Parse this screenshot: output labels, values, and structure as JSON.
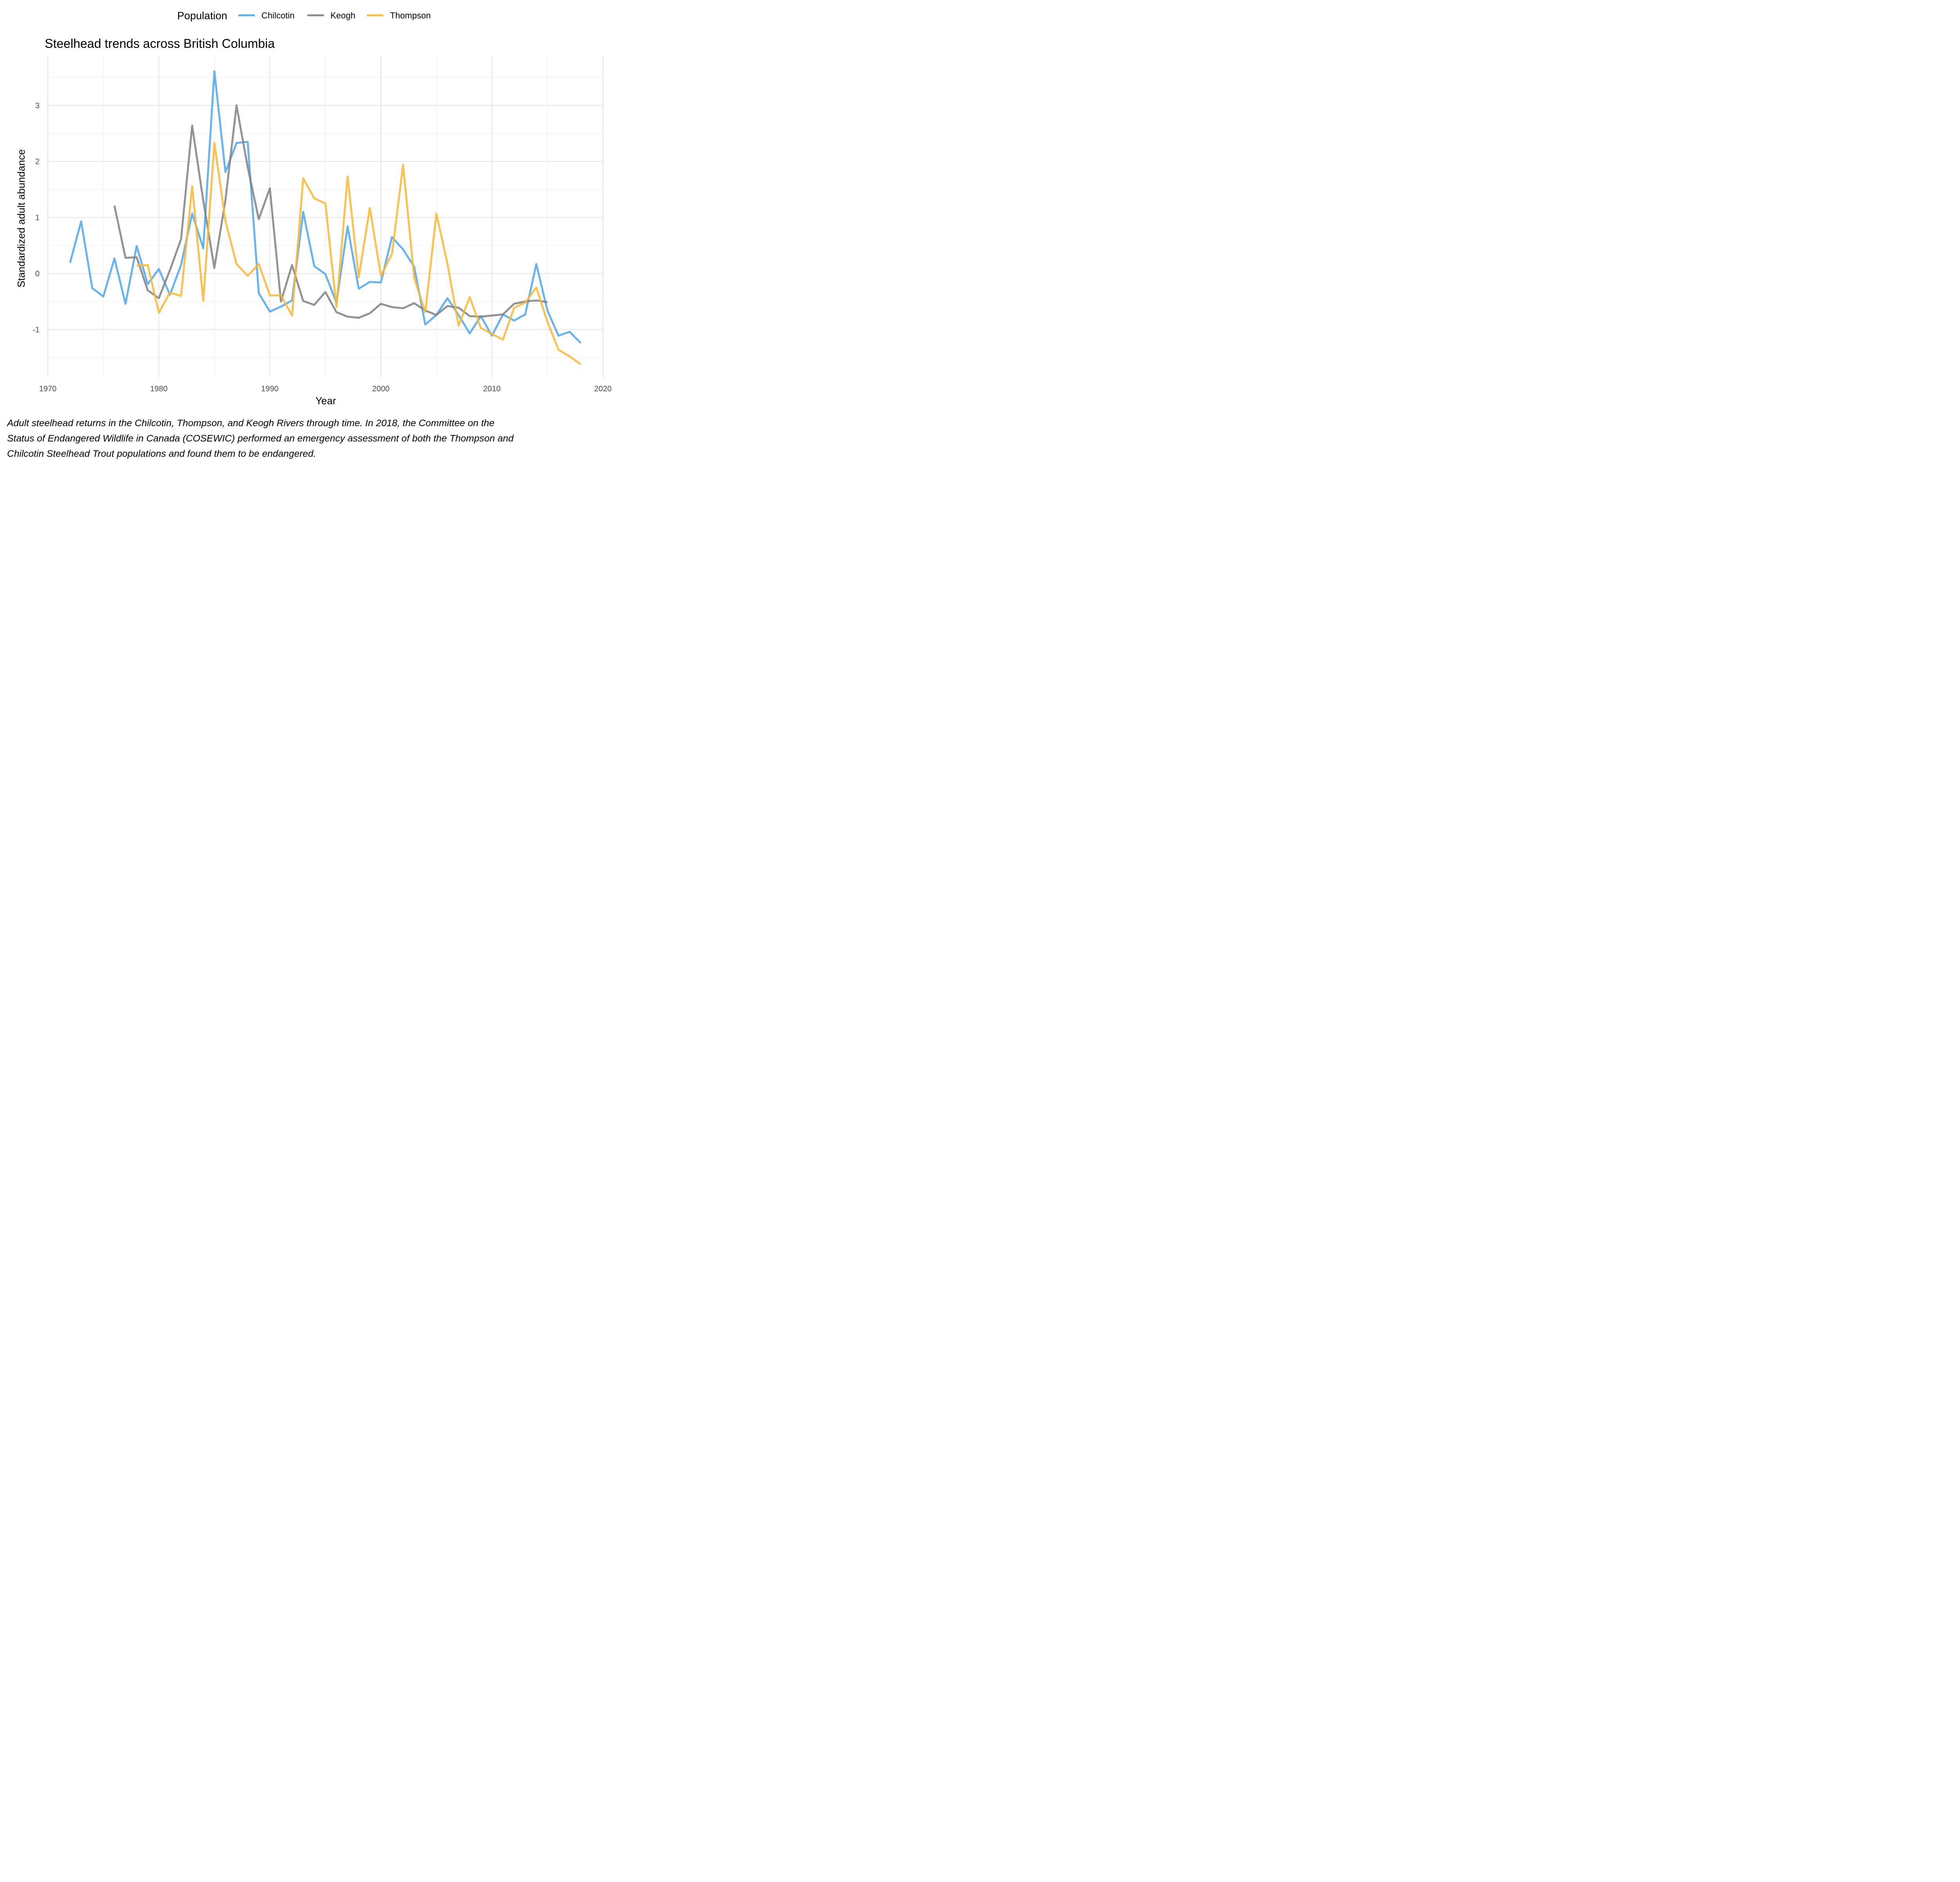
{
  "chart_data": {
    "type": "line",
    "title": "Steelhead trends across British Columbia",
    "xlabel": "Year",
    "ylabel": "Standardized adult abundance",
    "xlim": [
      1970,
      2020
    ],
    "ylim": [
      -1.85,
      3.88
    ],
    "x_ticks": [
      1970,
      1980,
      1990,
      2000,
      2010,
      2020
    ],
    "y_ticks": [
      -1,
      0,
      1,
      2,
      3
    ],
    "y_tick_labels": [
      "-1",
      "0",
      "1",
      "2",
      "3"
    ],
    "grid": true,
    "legend": {
      "title": "Population",
      "position": "top"
    },
    "series": [
      {
        "name": "Chilcotin",
        "color": "#4DA6F0",
        "x": [
          1972,
          1973,
          1974,
          1975,
          1976,
          1977,
          1978,
          1979,
          1980,
          1981,
          1982,
          1983,
          1984,
          1985,
          1986,
          1987,
          1988,
          1989,
          1990,
          1991,
          1992,
          1993,
          1994,
          1995,
          1996,
          1997,
          1998,
          1999,
          2000,
          2001,
          2002,
          2003,
          2004,
          2005,
          2006,
          2007,
          2008,
          2009,
          2010,
          2011,
          2012,
          2013,
          2014,
          2015,
          2016,
          2017,
          2018
        ],
        "values": [
          0.19,
          0.93,
          -0.26,
          -0.41,
          0.27,
          -0.54,
          0.49,
          -0.19,
          0.08,
          -0.38,
          0.15,
          1.07,
          0.45,
          3.61,
          1.81,
          2.33,
          2.35,
          -0.35,
          -0.68,
          -0.59,
          -0.48,
          1.1,
          0.13,
          -0.01,
          -0.52,
          0.84,
          -0.27,
          -0.15,
          -0.16,
          0.65,
          0.43,
          0.12,
          -0.91,
          -0.74,
          -0.44,
          -0.74,
          -1.07,
          -0.76,
          -1.11,
          -0.73,
          -0.84,
          -0.73,
          0.17,
          -0.66,
          -1.11,
          -1.04,
          -1.24
        ]
      },
      {
        "name": "Keogh",
        "color": "#808080",
        "x": [
          1976,
          1977,
          1978,
          1979,
          1980,
          1981,
          1982,
          1983,
          1984,
          1985,
          1986,
          1987,
          1988,
          1989,
          1990,
          1991,
          1992,
          1993,
          1994,
          1995,
          1996,
          1997,
          1998,
          1999,
          2000,
          2001,
          2002,
          2003,
          2004,
          2005,
          2006,
          2007,
          2008,
          2009,
          2010,
          2011,
          2012,
          2013,
          2014,
          2015
        ],
        "values": [
          1.21,
          0.28,
          0.29,
          -0.3,
          -0.44,
          0.06,
          0.61,
          2.64,
          1.3,
          0.1,
          1.31,
          3.0,
          1.9,
          0.97,
          1.52,
          -0.5,
          0.15,
          -0.49,
          -0.56,
          -0.33,
          -0.69,
          -0.77,
          -0.79,
          -0.71,
          -0.54,
          -0.6,
          -0.62,
          -0.53,
          -0.66,
          -0.74,
          -0.58,
          -0.61,
          -0.76,
          -0.77,
          -0.75,
          -0.73,
          -0.54,
          -0.5,
          -0.48,
          -0.51
        ]
      },
      {
        "name": "Thompson",
        "color": "#FBB731",
        "x": [
          1978,
          1979,
          1980,
          1981,
          1982,
          1983,
          1984,
          1985,
          1986,
          1987,
          1988,
          1989,
          1990,
          1991,
          1992,
          1993,
          1994,
          1995,
          1996,
          1997,
          1998,
          1999,
          2000,
          2001,
          2002,
          2003,
          2004,
          2005,
          2006,
          2007,
          2008,
          2009,
          2010,
          2011,
          2012,
          2013,
          2014,
          2015,
          2016,
          2017,
          2018
        ],
        "values": [
          0.14,
          0.15,
          -0.7,
          -0.34,
          -0.4,
          1.56,
          -0.49,
          2.33,
          0.93,
          0.17,
          -0.04,
          0.17,
          -0.39,
          -0.39,
          -0.75,
          1.7,
          1.34,
          1.25,
          -0.6,
          1.73,
          -0.07,
          1.17,
          -0.04,
          0.35,
          1.94,
          -0.08,
          -0.69,
          1.07,
          0.17,
          -0.93,
          -0.42,
          -0.97,
          -1.08,
          -1.18,
          -0.61,
          -0.52,
          -0.25,
          -0.86,
          -1.36,
          -1.48,
          -1.62
        ]
      }
    ]
  },
  "caption": {
    "lines": [
      "Adult steelhead returns in the Chilcotin, Thompson, and Keogh Rivers through time. In 2018, the Committee on the",
      "Status of Endangered Wildlife in Canada (COSEWIC) performed an emergency assessment of both the Thompson and",
      "Chilcotin Steelhead Trout populations and found them to be endangered."
    ]
  }
}
